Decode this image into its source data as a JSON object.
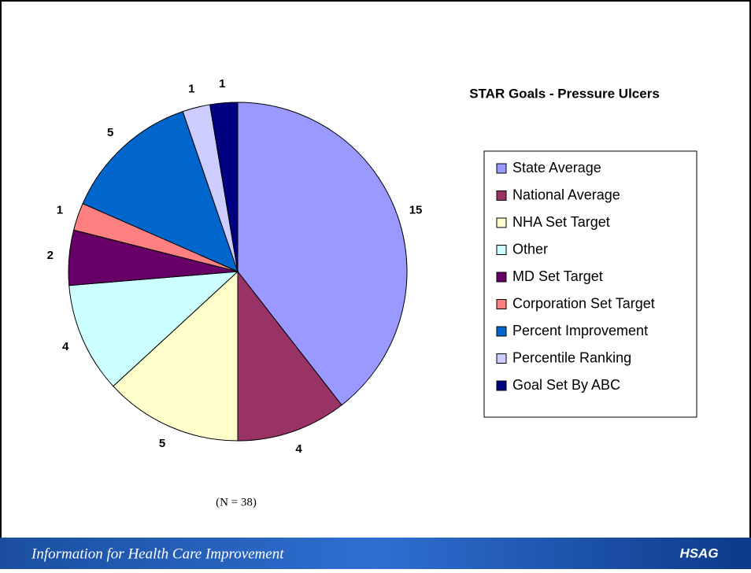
{
  "chart_data": {
    "type": "pie",
    "title": "STAR Goals - Pressure Ulcers",
    "categories": [
      "State Average",
      "National Average",
      "NHA Set Target",
      "Other",
      "MD Set Target",
      "Corporation Set Target",
      "Percent Improvement",
      "Percentile Ranking",
      "Goal Set By ABC"
    ],
    "values": [
      15,
      4,
      5,
      4,
      2,
      1,
      5,
      1,
      1
    ],
    "colors": [
      "#9999ff",
      "#993366",
      "#ffffcc",
      "#ccffff",
      "#660066",
      "#ff8080",
      "#0066cc",
      "#ccccff",
      "#000080"
    ],
    "legend": "right"
  },
  "note": "(N = 38)",
  "footer": {
    "tagline": "Information for Health Care Improvement",
    "logo": "HSAG"
  }
}
